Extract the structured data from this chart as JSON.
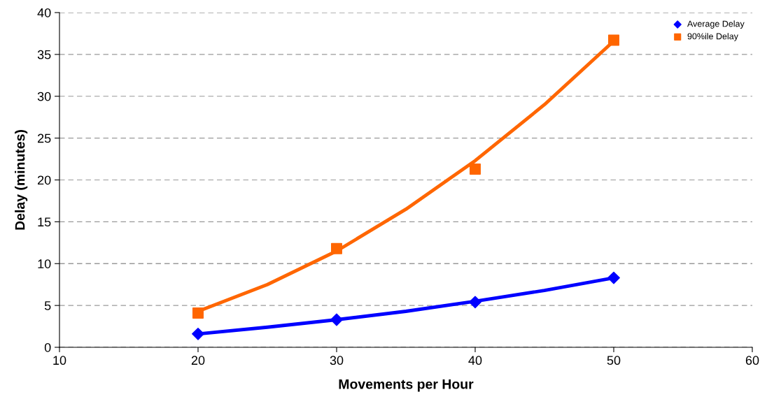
{
  "chart_data": {
    "type": "scatter",
    "xlabel": "Movements per Hour",
    "ylabel": "Delay (minutes)",
    "xlim": [
      10,
      60
    ],
    "xticks": [
      10,
      20,
      30,
      40,
      50,
      60
    ],
    "ylim": [
      0,
      40
    ],
    "yticks": [
      0,
      5,
      10,
      15,
      20,
      25,
      30,
      35,
      40
    ],
    "grid": "y",
    "legend": "top right",
    "series": [
      {
        "type": "line",
        "color": "#0000ff",
        "marker": "none",
        "line_style": "solid",
        "x": [
          20,
          25,
          30,
          35,
          40,
          45,
          50
        ],
        "values": [
          1.6,
          2.4,
          3.3,
          4.3,
          5.5,
          6.8,
          8.3
        ]
      },
      {
        "type": "line",
        "color": "#ff6600",
        "marker": "none",
        "line_style": "solid",
        "x": [
          20,
          25,
          30,
          35,
          40,
          45,
          50
        ],
        "values": [
          4.3,
          7.5,
          11.5,
          16.5,
          22.3,
          29,
          36.6
        ]
      },
      {
        "name": "Average Delay",
        "color": "#0000ff",
        "marker": "diamond",
        "x": [
          20,
          30,
          40,
          50
        ],
        "values": [
          1.6,
          3.3,
          5.4,
          8.3
        ]
      },
      {
        "name": "90%ile Delay",
        "color": "#ff6600",
        "marker": "square",
        "x": [
          20,
          30,
          40,
          50
        ],
        "values": [
          4.1,
          11.8,
          21.3,
          36.7
        ]
      }
    ]
  }
}
